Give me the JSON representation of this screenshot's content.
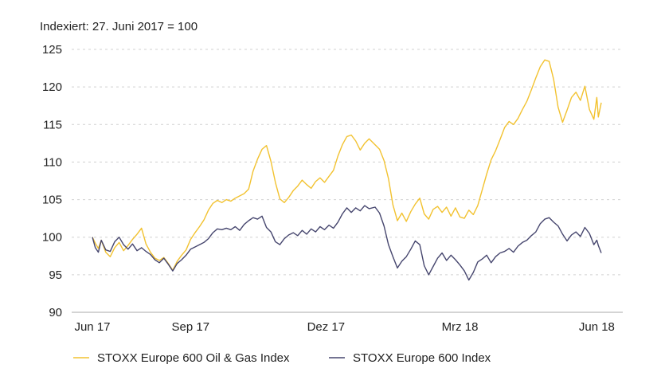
{
  "chart_data": {
    "type": "line",
    "subtitle": "Indexiert: 27. Juni 2017 = 100",
    "x_tick_labels": [
      "Jun 17",
      "Sep 17",
      "Dez 17",
      "Mrz 18",
      "Jun 18"
    ],
    "x_tick_dates": [
      "2017-06-27",
      "2017-09-01",
      "2017-12-01",
      "2018-03-01",
      "2018-06-01"
    ],
    "x_range": [
      "2017-06-27",
      "2018-06-04"
    ],
    "ylim": [
      90,
      125
    ],
    "y_ticks": [
      90,
      95,
      100,
      105,
      110,
      115,
      120,
      125
    ],
    "grid": "horizontal dashed",
    "legend_position": "bottom-left",
    "series": [
      {
        "name": "STOXX Europe 600 Oil & Gas Index",
        "color": "#f2c230",
        "points": [
          [
            "2017-06-27",
            100.0
          ],
          [
            "2017-06-29",
            99.2
          ],
          [
            "2017-07-01",
            98.5
          ],
          [
            "2017-07-03",
            99.6
          ],
          [
            "2017-07-06",
            98.0
          ],
          [
            "2017-07-09",
            97.4
          ],
          [
            "2017-07-12",
            98.6
          ],
          [
            "2017-07-15",
            99.3
          ],
          [
            "2017-07-18",
            98.2
          ],
          [
            "2017-07-21",
            98.9
          ],
          [
            "2017-07-24",
            99.7
          ],
          [
            "2017-07-27",
            100.4
          ],
          [
            "2017-07-30",
            101.2
          ],
          [
            "2017-08-02",
            99.1
          ],
          [
            "2017-08-05",
            98.0
          ],
          [
            "2017-08-08",
            97.2
          ],
          [
            "2017-08-11",
            96.9
          ],
          [
            "2017-08-14",
            97.3
          ],
          [
            "2017-08-17",
            96.5
          ],
          [
            "2017-08-20",
            95.6
          ],
          [
            "2017-08-23",
            96.8
          ],
          [
            "2017-08-26",
            97.6
          ],
          [
            "2017-08-29",
            98.3
          ],
          [
            "2017-09-01",
            99.7
          ],
          [
            "2017-09-04",
            100.6
          ],
          [
            "2017-09-07",
            101.4
          ],
          [
            "2017-09-10",
            102.3
          ],
          [
            "2017-09-13",
            103.6
          ],
          [
            "2017-09-16",
            104.5
          ],
          [
            "2017-09-19",
            104.9
          ],
          [
            "2017-09-22",
            104.6
          ],
          [
            "2017-09-25",
            105.0
          ],
          [
            "2017-09-28",
            104.8
          ],
          [
            "2017-10-01",
            105.2
          ],
          [
            "2017-10-04",
            105.5
          ],
          [
            "2017-10-07",
            105.8
          ],
          [
            "2017-10-10",
            106.4
          ],
          [
            "2017-10-13",
            108.8
          ],
          [
            "2017-10-16",
            110.4
          ],
          [
            "2017-10-19",
            111.7
          ],
          [
            "2017-10-22",
            112.2
          ],
          [
            "2017-10-25",
            110.1
          ],
          [
            "2017-10-28",
            107.3
          ],
          [
            "2017-10-31",
            105.1
          ],
          [
            "2017-11-03",
            104.6
          ],
          [
            "2017-11-06",
            105.3
          ],
          [
            "2017-11-09",
            106.2
          ],
          [
            "2017-11-12",
            106.8
          ],
          [
            "2017-11-15",
            107.6
          ],
          [
            "2017-11-18",
            107.0
          ],
          [
            "2017-11-21",
            106.5
          ],
          [
            "2017-11-24",
            107.4
          ],
          [
            "2017-11-27",
            107.9
          ],
          [
            "2017-11-30",
            107.3
          ],
          [
            "2017-12-03",
            108.1
          ],
          [
            "2017-12-06",
            108.9
          ],
          [
            "2017-12-09",
            110.8
          ],
          [
            "2017-12-12",
            112.3
          ],
          [
            "2017-12-15",
            113.4
          ],
          [
            "2017-12-18",
            113.6
          ],
          [
            "2017-12-21",
            112.8
          ],
          [
            "2017-12-24",
            111.6
          ],
          [
            "2017-12-27",
            112.5
          ],
          [
            "2017-12-30",
            113.1
          ],
          [
            "2018-01-03",
            112.3
          ],
          [
            "2018-01-06",
            111.7
          ],
          [
            "2018-01-09",
            110.2
          ],
          [
            "2018-01-12",
            107.8
          ],
          [
            "2018-01-15",
            104.3
          ],
          [
            "2018-01-18",
            102.2
          ],
          [
            "2018-01-21",
            103.2
          ],
          [
            "2018-01-24",
            102.1
          ],
          [
            "2018-01-27",
            103.4
          ],
          [
            "2018-01-30",
            104.4
          ],
          [
            "2018-02-02",
            105.2
          ],
          [
            "2018-02-05",
            103.1
          ],
          [
            "2018-02-08",
            102.4
          ],
          [
            "2018-02-11",
            103.7
          ],
          [
            "2018-02-14",
            104.1
          ],
          [
            "2018-02-17",
            103.3
          ],
          [
            "2018-02-20",
            104.0
          ],
          [
            "2018-02-23",
            102.8
          ],
          [
            "2018-02-26",
            103.9
          ],
          [
            "2018-03-01",
            102.7
          ],
          [
            "2018-03-04",
            102.5
          ],
          [
            "2018-03-07",
            103.6
          ],
          [
            "2018-03-10",
            103.0
          ],
          [
            "2018-03-13",
            104.2
          ],
          [
            "2018-03-16",
            106.3
          ],
          [
            "2018-03-19",
            108.4
          ],
          [
            "2018-03-22",
            110.3
          ],
          [
            "2018-03-25",
            111.5
          ],
          [
            "2018-03-28",
            113.0
          ],
          [
            "2018-03-31",
            114.6
          ],
          [
            "2018-04-03",
            115.4
          ],
          [
            "2018-04-06",
            115.0
          ],
          [
            "2018-04-09",
            115.8
          ],
          [
            "2018-04-12",
            117.0
          ],
          [
            "2018-04-15",
            118.1
          ],
          [
            "2018-04-18",
            119.6
          ],
          [
            "2018-04-21",
            121.2
          ],
          [
            "2018-04-24",
            122.7
          ],
          [
            "2018-04-27",
            123.6
          ],
          [
            "2018-04-30",
            123.4
          ],
          [
            "2018-05-03",
            121.0
          ],
          [
            "2018-05-06",
            117.3
          ],
          [
            "2018-05-09",
            115.3
          ],
          [
            "2018-05-12",
            116.9
          ],
          [
            "2018-05-15",
            118.6
          ],
          [
            "2018-05-18",
            119.3
          ],
          [
            "2018-05-21",
            118.2
          ],
          [
            "2018-05-24",
            120.1
          ],
          [
            "2018-05-27",
            117.0
          ],
          [
            "2018-05-30",
            115.7
          ],
          [
            "2018-06-01",
            118.6
          ],
          [
            "2018-06-02",
            116.0
          ],
          [
            "2018-06-04",
            117.9
          ]
        ]
      },
      {
        "name": "STOXX Europe 600 Index",
        "color": "#46466e",
        "points": [
          [
            "2017-06-27",
            100.0
          ],
          [
            "2017-06-29",
            98.6
          ],
          [
            "2017-07-01",
            98.0
          ],
          [
            "2017-07-03",
            99.6
          ],
          [
            "2017-07-06",
            98.3
          ],
          [
            "2017-07-09",
            98.1
          ],
          [
            "2017-07-12",
            99.4
          ],
          [
            "2017-07-15",
            100.0
          ],
          [
            "2017-07-18",
            99.0
          ],
          [
            "2017-07-21",
            98.4
          ],
          [
            "2017-07-24",
            99.1
          ],
          [
            "2017-07-27",
            98.2
          ],
          [
            "2017-07-30",
            98.6
          ],
          [
            "2017-08-02",
            98.1
          ],
          [
            "2017-08-05",
            97.7
          ],
          [
            "2017-08-08",
            97.0
          ],
          [
            "2017-08-11",
            96.6
          ],
          [
            "2017-08-14",
            97.2
          ],
          [
            "2017-08-17",
            96.4
          ],
          [
            "2017-08-20",
            95.5
          ],
          [
            "2017-08-23",
            96.5
          ],
          [
            "2017-08-26",
            97.0
          ],
          [
            "2017-08-29",
            97.6
          ],
          [
            "2017-09-01",
            98.4
          ],
          [
            "2017-09-04",
            98.7
          ],
          [
            "2017-09-07",
            99.0
          ],
          [
            "2017-09-10",
            99.3
          ],
          [
            "2017-09-13",
            99.8
          ],
          [
            "2017-09-16",
            100.6
          ],
          [
            "2017-09-19",
            101.1
          ],
          [
            "2017-09-22",
            101.0
          ],
          [
            "2017-09-25",
            101.2
          ],
          [
            "2017-09-28",
            101.0
          ],
          [
            "2017-10-01",
            101.4
          ],
          [
            "2017-10-04",
            100.9
          ],
          [
            "2017-10-07",
            101.7
          ],
          [
            "2017-10-10",
            102.2
          ],
          [
            "2017-10-13",
            102.6
          ],
          [
            "2017-10-16",
            102.4
          ],
          [
            "2017-10-19",
            102.8
          ],
          [
            "2017-10-22",
            101.3
          ],
          [
            "2017-10-25",
            100.7
          ],
          [
            "2017-10-28",
            99.4
          ],
          [
            "2017-10-31",
            99.0
          ],
          [
            "2017-11-03",
            99.8
          ],
          [
            "2017-11-06",
            100.3
          ],
          [
            "2017-11-09",
            100.6
          ],
          [
            "2017-11-12",
            100.2
          ],
          [
            "2017-11-15",
            100.9
          ],
          [
            "2017-11-18",
            100.4
          ],
          [
            "2017-11-21",
            101.1
          ],
          [
            "2017-11-24",
            100.7
          ],
          [
            "2017-11-27",
            101.4
          ],
          [
            "2017-11-30",
            101.0
          ],
          [
            "2017-12-03",
            101.6
          ],
          [
            "2017-12-06",
            101.2
          ],
          [
            "2017-12-09",
            102.0
          ],
          [
            "2017-12-12",
            103.1
          ],
          [
            "2017-12-15",
            103.9
          ],
          [
            "2017-12-18",
            103.3
          ],
          [
            "2017-12-21",
            103.9
          ],
          [
            "2017-12-24",
            103.5
          ],
          [
            "2017-12-27",
            104.2
          ],
          [
            "2017-12-30",
            103.8
          ],
          [
            "2018-01-03",
            104.0
          ],
          [
            "2018-01-06",
            103.2
          ],
          [
            "2018-01-09",
            101.5
          ],
          [
            "2018-01-12",
            99.0
          ],
          [
            "2018-01-15",
            97.4
          ],
          [
            "2018-01-18",
            95.9
          ],
          [
            "2018-01-21",
            96.8
          ],
          [
            "2018-01-24",
            97.4
          ],
          [
            "2018-01-27",
            98.4
          ],
          [
            "2018-01-30",
            99.5
          ],
          [
            "2018-02-02",
            99.0
          ],
          [
            "2018-02-05",
            96.2
          ],
          [
            "2018-02-08",
            95.0
          ],
          [
            "2018-02-11",
            96.1
          ],
          [
            "2018-02-14",
            97.2
          ],
          [
            "2018-02-17",
            97.9
          ],
          [
            "2018-02-20",
            96.9
          ],
          [
            "2018-02-23",
            97.6
          ],
          [
            "2018-02-26",
            97.0
          ],
          [
            "2018-03-01",
            96.3
          ],
          [
            "2018-03-04",
            95.5
          ],
          [
            "2018-03-07",
            94.3
          ],
          [
            "2018-03-10",
            95.3
          ],
          [
            "2018-03-13",
            96.7
          ],
          [
            "2018-03-16",
            97.1
          ],
          [
            "2018-03-19",
            97.6
          ],
          [
            "2018-03-22",
            96.6
          ],
          [
            "2018-03-25",
            97.4
          ],
          [
            "2018-03-28",
            97.9
          ],
          [
            "2018-03-31",
            98.1
          ],
          [
            "2018-04-03",
            98.5
          ],
          [
            "2018-04-06",
            98.0
          ],
          [
            "2018-04-09",
            98.8
          ],
          [
            "2018-04-12",
            99.3
          ],
          [
            "2018-04-15",
            99.6
          ],
          [
            "2018-04-18",
            100.2
          ],
          [
            "2018-04-21",
            100.7
          ],
          [
            "2018-04-24",
            101.8
          ],
          [
            "2018-04-27",
            102.4
          ],
          [
            "2018-04-30",
            102.6
          ],
          [
            "2018-05-03",
            102.0
          ],
          [
            "2018-05-06",
            101.5
          ],
          [
            "2018-05-09",
            100.4
          ],
          [
            "2018-05-12",
            99.5
          ],
          [
            "2018-05-15",
            100.3
          ],
          [
            "2018-05-18",
            100.7
          ],
          [
            "2018-05-21",
            100.1
          ],
          [
            "2018-05-24",
            101.3
          ],
          [
            "2018-05-27",
            100.5
          ],
          [
            "2018-05-30",
            99.0
          ],
          [
            "2018-06-01",
            99.6
          ],
          [
            "2018-06-02",
            98.9
          ],
          [
            "2018-06-04",
            97.9
          ]
        ]
      }
    ]
  }
}
